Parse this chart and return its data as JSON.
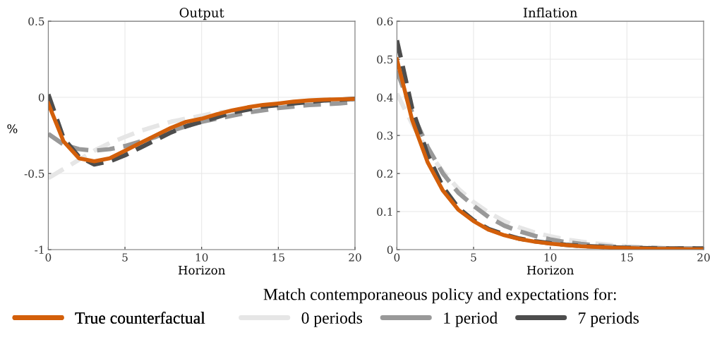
{
  "chart_data": [
    {
      "type": "line",
      "title": "Output",
      "xlabel": "Horizon",
      "ylabel": "%",
      "legend": "bottom",
      "legend_title": "Match contemporaneous policy and expectations for:",
      "grid": true,
      "x": [
        0,
        1,
        2,
        3,
        4,
        5,
        6,
        7,
        8,
        9,
        10,
        11,
        12,
        13,
        14,
        15,
        16,
        17,
        18,
        19,
        20
      ],
      "xlim": [
        0,
        20
      ],
      "xticks": [
        0,
        5,
        10,
        15,
        20
      ],
      "ylim": [
        -1,
        0.5
      ],
      "yticks": [
        -1,
        -0.5,
        0,
        0.5
      ],
      "series": [
        {
          "name": "0 periods",
          "color": "#e6e6e6",
          "line_style": "dashed",
          "values": [
            -0.53,
            -0.47,
            -0.41,
            -0.35,
            -0.3,
            -0.26,
            -0.22,
            -0.19,
            -0.16,
            -0.14,
            -0.12,
            -0.1,
            -0.09,
            -0.07,
            -0.06,
            -0.05,
            -0.04,
            -0.03,
            -0.025,
            -0.02,
            -0.015
          ]
        },
        {
          "name": "1 period",
          "color": "#999999",
          "line_style": "dashed",
          "values": [
            -0.24,
            -0.31,
            -0.34,
            -0.35,
            -0.34,
            -0.32,
            -0.29,
            -0.26,
            -0.22,
            -0.19,
            -0.16,
            -0.14,
            -0.12,
            -0.1,
            -0.085,
            -0.07,
            -0.06,
            -0.05,
            -0.045,
            -0.04,
            -0.03
          ]
        },
        {
          "name": "7 periods",
          "color": "#4d4d4d",
          "line_style": "dashed",
          "values": [
            0.02,
            -0.27,
            -0.39,
            -0.44,
            -0.42,
            -0.38,
            -0.33,
            -0.28,
            -0.23,
            -0.19,
            -0.16,
            -0.13,
            -0.1,
            -0.08,
            -0.06,
            -0.05,
            -0.04,
            -0.03,
            -0.02,
            -0.015,
            -0.01
          ]
        },
        {
          "name": "True counterfactual",
          "color": "#d35f0a",
          "line_style": "solid",
          "values": [
            -0.04,
            -0.29,
            -0.4,
            -0.42,
            -0.4,
            -0.35,
            -0.3,
            -0.25,
            -0.2,
            -0.16,
            -0.14,
            -0.11,
            -0.085,
            -0.065,
            -0.05,
            -0.04,
            -0.028,
            -0.02,
            -0.015,
            -0.012,
            -0.01
          ]
        }
      ]
    },
    {
      "type": "line",
      "title": "Inflation",
      "xlabel": "Horizon",
      "grid": true,
      "x": [
        0,
        1,
        2,
        3,
        4,
        5,
        6,
        7,
        8,
        9,
        10,
        11,
        12,
        13,
        14,
        15,
        16,
        17,
        18,
        19,
        20
      ],
      "xlim": [
        0,
        20
      ],
      "xticks": [
        0,
        5,
        10,
        15,
        20
      ],
      "ylim": [
        0,
        0.6
      ],
      "yticks": [
        0,
        0.1,
        0.2,
        0.3,
        0.4,
        0.5,
        0.6
      ],
      "series": [
        {
          "color": "#e6e6e6",
          "line_style": "dashed",
          "values": [
            0.41,
            0.33,
            0.26,
            0.205,
            0.16,
            0.125,
            0.097,
            0.075,
            0.058,
            0.045,
            0.035,
            0.027,
            0.021,
            0.016,
            0.012,
            0.009,
            0.007,
            0.005,
            0.004,
            0.003,
            0.003
          ]
        },
        {
          "color": "#999999",
          "line_style": "dashed",
          "values": [
            0.47,
            0.36,
            0.27,
            0.2,
            0.15,
            0.115,
            0.085,
            0.063,
            0.048,
            0.036,
            0.027,
            0.02,
            0.015,
            0.011,
            0.008,
            0.006,
            0.005,
            0.004,
            0.003,
            0.003,
            0.003
          ]
        },
        {
          "color": "#4d4d4d",
          "line_style": "dashed",
          "values": [
            0.55,
            0.37,
            0.25,
            0.165,
            0.11,
            0.077,
            0.054,
            0.04,
            0.029,
            0.022,
            0.017,
            0.013,
            0.01,
            0.008,
            0.006,
            0.005,
            0.004,
            0.003,
            0.003,
            0.003,
            0.003
          ]
        },
        {
          "color": "#d35f0a",
          "line_style": "solid",
          "values": [
            0.5,
            0.34,
            0.23,
            0.155,
            0.105,
            0.075,
            0.052,
            0.038,
            0.028,
            0.021,
            0.016,
            0.012,
            0.009,
            0.007,
            0.005,
            0.004,
            0.003,
            0.002,
            0.002,
            0.001,
            0.001
          ]
        }
      ]
    }
  ]
}
